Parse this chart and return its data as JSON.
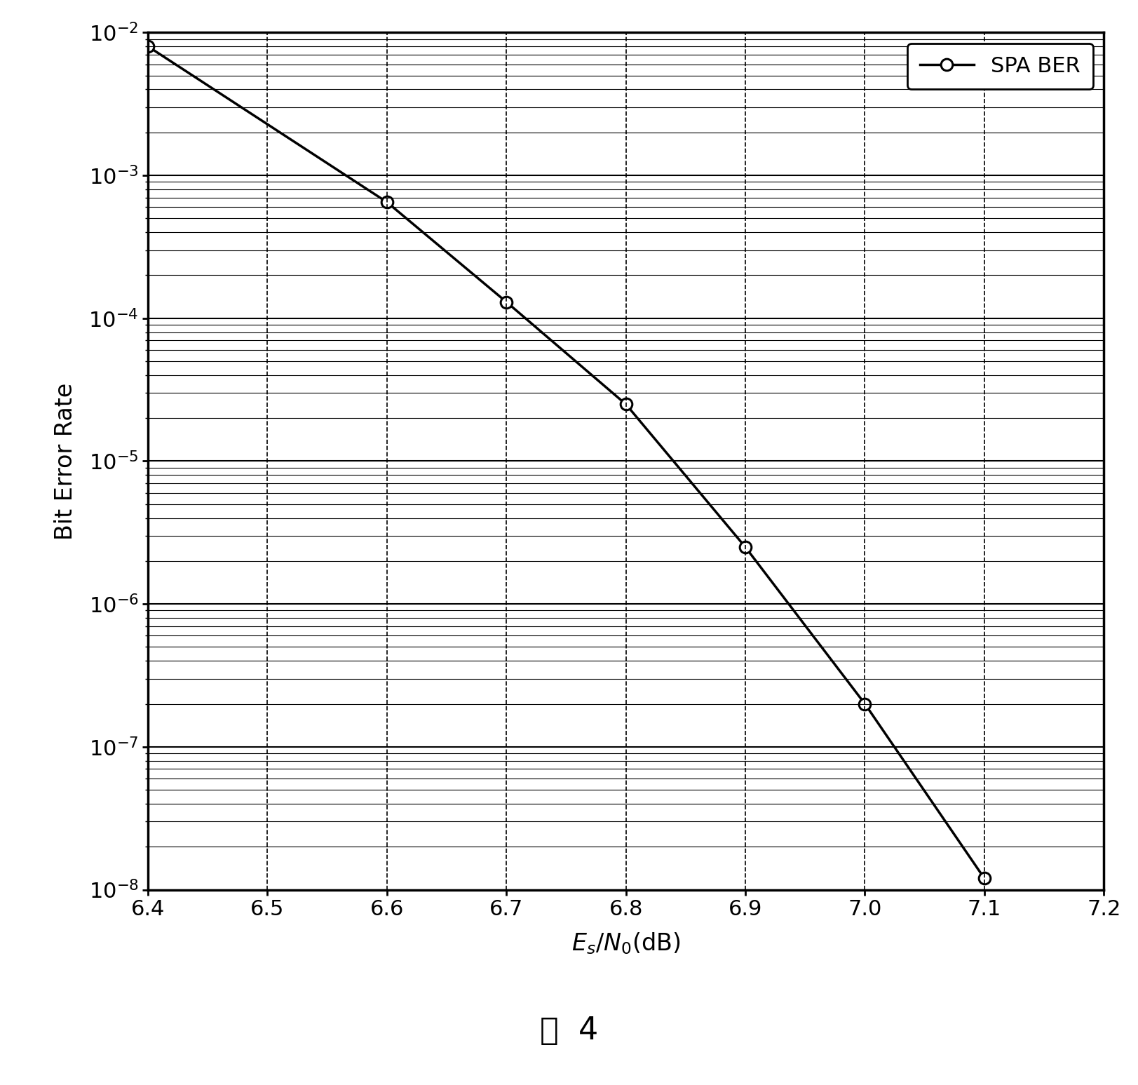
{
  "x": [
    6.4,
    6.6,
    6.7,
    6.8,
    6.9,
    7.0,
    7.1
  ],
  "y": [
    0.008,
    0.00065,
    0.00013,
    2.5e-05,
    2.5e-06,
    2e-07,
    1.2e-08
  ],
  "xlim": [
    6.4,
    7.2
  ],
  "ylim": [
    1e-08,
    0.01
  ],
  "ylabel": "Bit Error Rate",
  "legend_label": "SPA BER",
  "line_color": "#000000",
  "marker": "o",
  "marker_facecolor": "white",
  "marker_edgecolor": "#000000",
  "marker_size": 12,
  "line_width": 2.5,
  "xticks": [
    6.4,
    6.5,
    6.6,
    6.7,
    6.8,
    6.9,
    7.0,
    7.1,
    7.2
  ],
  "background_color": "#ffffff",
  "title_bottom": "图  4"
}
